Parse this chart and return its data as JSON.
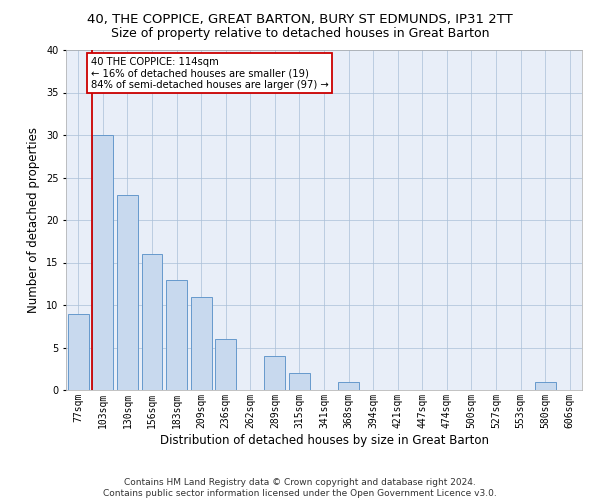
{
  "title_line1": "40, THE COPPICE, GREAT BARTON, BURY ST EDMUNDS, IP31 2TT",
  "title_line2": "Size of property relative to detached houses in Great Barton",
  "xlabel": "Distribution of detached houses by size in Great Barton",
  "ylabel": "Number of detached properties",
  "categories": [
    "77sqm",
    "103sqm",
    "130sqm",
    "156sqm",
    "183sqm",
    "209sqm",
    "236sqm",
    "262sqm",
    "289sqm",
    "315sqm",
    "341sqm",
    "368sqm",
    "394sqm",
    "421sqm",
    "447sqm",
    "474sqm",
    "500sqm",
    "527sqm",
    "553sqm",
    "580sqm",
    "606sqm"
  ],
  "values": [
    9,
    30,
    23,
    16,
    13,
    11,
    6,
    0,
    4,
    2,
    0,
    1,
    0,
    0,
    0,
    0,
    0,
    0,
    0,
    1,
    0
  ],
  "bar_color": "#c8d9ee",
  "bar_edge_color": "#6699cc",
  "vline_color": "#cc0000",
  "annotation_text": "40 THE COPPICE: 114sqm\n← 16% of detached houses are smaller (19)\n84% of semi-detached houses are larger (97) →",
  "annotation_box_color": "white",
  "annotation_box_edge_color": "#cc0000",
  "ylim": [
    0,
    40
  ],
  "yticks": [
    0,
    5,
    10,
    15,
    20,
    25,
    30,
    35,
    40
  ],
  "grid_color": "#aabfd8",
  "background_color": "#e8eef8",
  "footnote": "Contains HM Land Registry data © Crown copyright and database right 2024.\nContains public sector information licensed under the Open Government Licence v3.0.",
  "title_fontsize": 9.5,
  "subtitle_fontsize": 9,
  "tick_fontsize": 7,
  "ylabel_fontsize": 8.5,
  "xlabel_fontsize": 8.5,
  "footnote_fontsize": 6.5
}
